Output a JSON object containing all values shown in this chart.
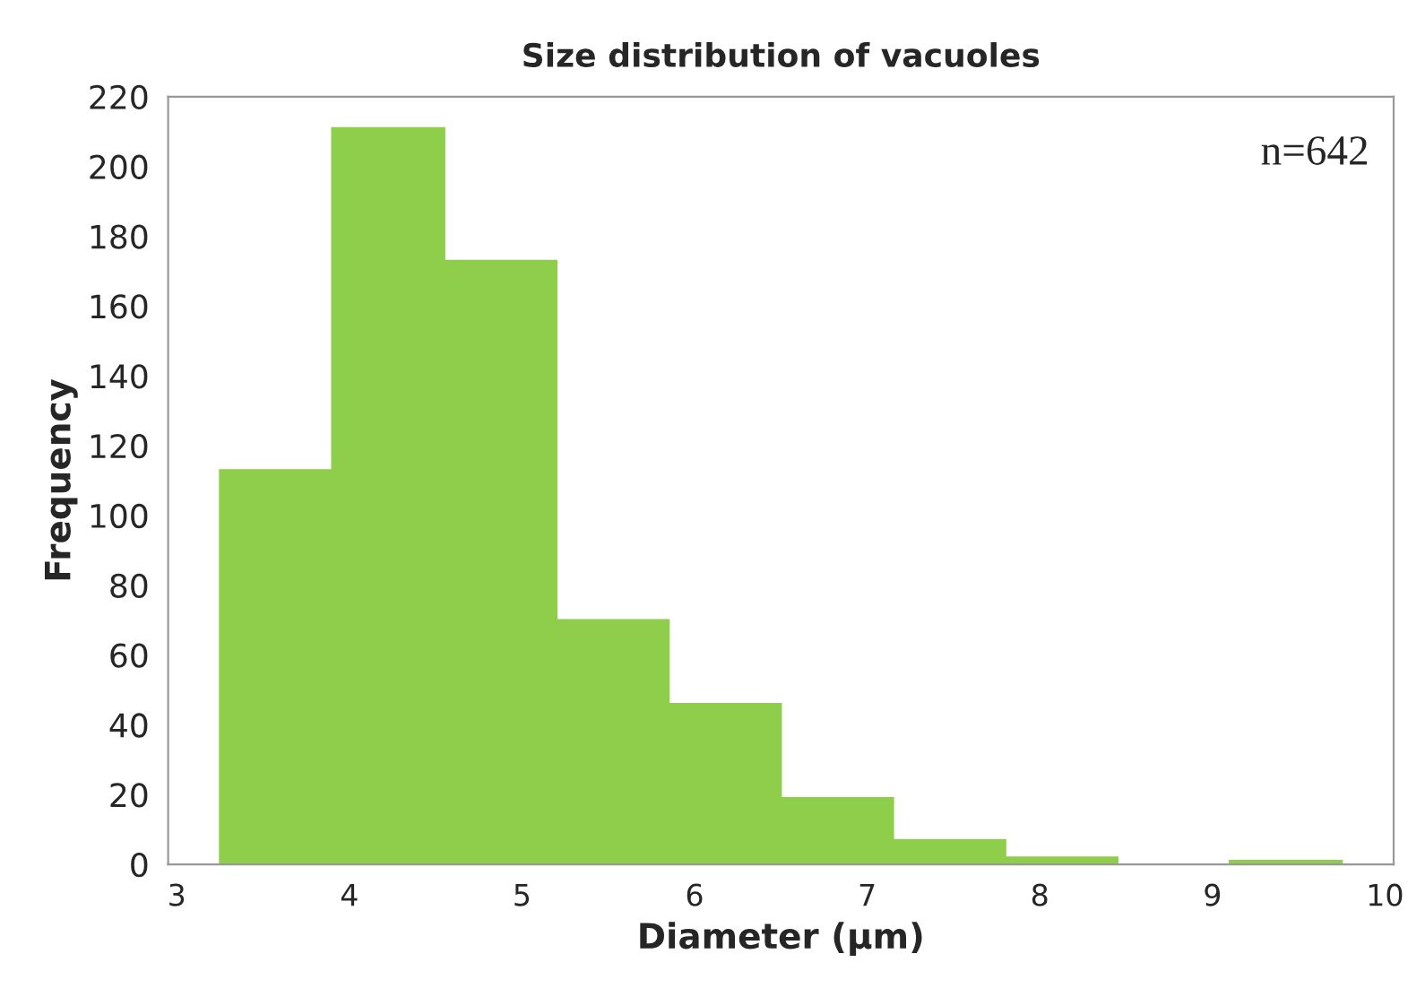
{
  "chart_data": {
    "type": "histogram",
    "title": "Size distribution of vacuoles",
    "xlabel": "Diameter (µm)",
    "ylabel": "Frequency",
    "bins": [
      3.25,
      3.9,
      4.55,
      5.2,
      5.85,
      6.5,
      7.15,
      7.8,
      8.45,
      9.1,
      9.75
    ],
    "values": [
      113,
      211,
      173,
      70,
      46,
      19,
      7,
      2,
      0,
      1
    ],
    "color": "#8fce4a",
    "xlim": [
      2.95,
      10.05
    ],
    "xticks": [
      3,
      4,
      5,
      6,
      7,
      8,
      9,
      10
    ],
    "ylim": [
      0,
      220
    ],
    "yticks": [
      0,
      20,
      40,
      60,
      80,
      100,
      120,
      140,
      160,
      180,
      200,
      220
    ],
    "annotations": [
      "n=642"
    ],
    "grid": false
  }
}
